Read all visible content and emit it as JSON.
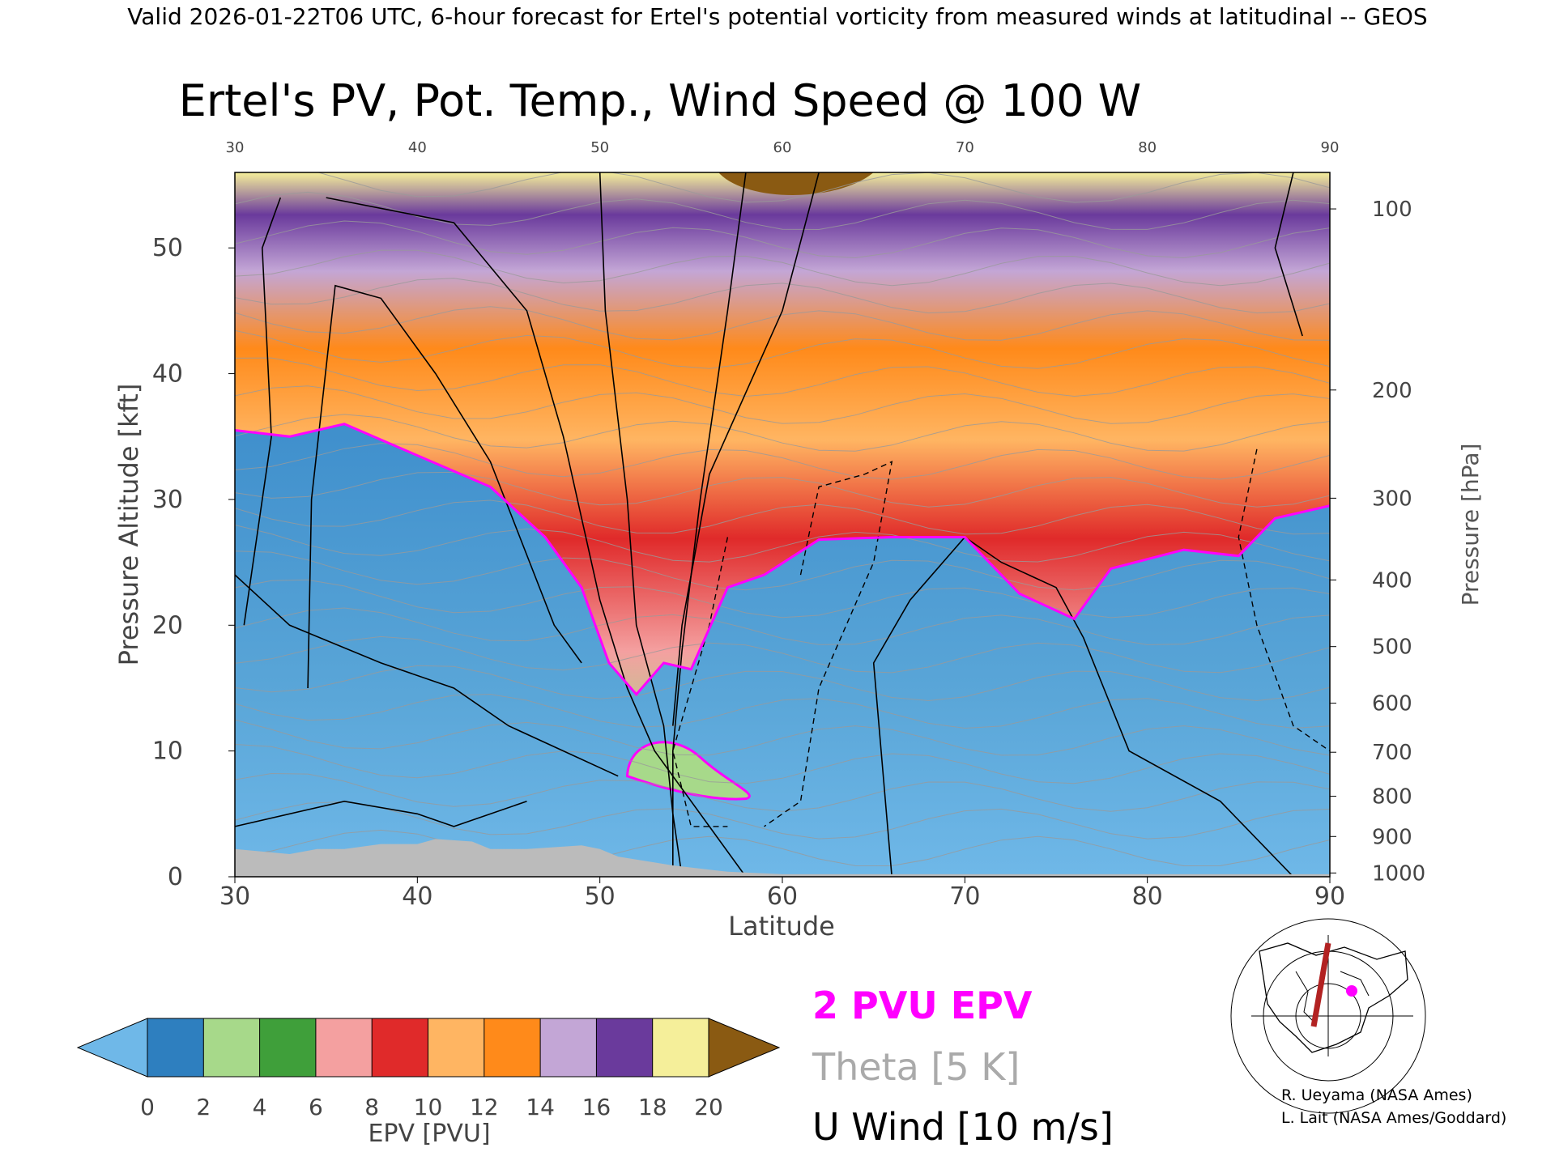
{
  "header": "Valid 2026-01-22T06 UTC, 6-hour forecast for Ertel's potential vorticity from measured winds at latitudinal -- GEOS",
  "chart_data": {
    "type": "heatmap",
    "title": "Ertel's PV, Pot. Temp., Wind Speed @ 100 W",
    "xlabel": "Latitude",
    "ylabel": "Pressure Altitude [kft]",
    "ylabel_right": "Pressure [hPa]",
    "xlim": [
      30,
      90
    ],
    "ylim": [
      0,
      56
    ],
    "x_ticks": [
      "30",
      "40",
      "50",
      "60",
      "70",
      "80",
      "90"
    ],
    "y_ticks": [
      "0",
      "10",
      "20",
      "30",
      "40",
      "50"
    ],
    "pressure_ticks": [
      {
        "label": "100",
        "kft": 53.1
      },
      {
        "label": "200",
        "kft": 38.7
      },
      {
        "label": "300",
        "kft": 30.1
      },
      {
        "label": "400",
        "kft": 23.6
      },
      {
        "label": "500",
        "kft": 18.3
      },
      {
        "label": "600",
        "kft": 13.8
      },
      {
        "label": "700",
        "kft": 9.9
      },
      {
        "label": "800",
        "kft": 6.4
      },
      {
        "label": "900",
        "kft": 3.2
      },
      {
        "label": "1000",
        "kft": 0.3
      }
    ],
    "tropopause_2pvu_kft": [
      {
        "lat": 30,
        "kft": 35.5
      },
      {
        "lat": 33,
        "kft": 35.0
      },
      {
        "lat": 36,
        "kft": 36.0
      },
      {
        "lat": 40,
        "kft": 33.5
      },
      {
        "lat": 44,
        "kft": 31.0
      },
      {
        "lat": 47,
        "kft": 27.0
      },
      {
        "lat": 49,
        "kft": 23.0
      },
      {
        "lat": 50.5,
        "kft": 17.0
      },
      {
        "lat": 52,
        "kft": 14.5
      },
      {
        "lat": 53.5,
        "kft": 17.0
      },
      {
        "lat": 55,
        "kft": 16.5
      },
      {
        "lat": 57,
        "kft": 23.0
      },
      {
        "lat": 59,
        "kft": 24.0
      },
      {
        "lat": 62,
        "kft": 26.8
      },
      {
        "lat": 66,
        "kft": 27.0
      },
      {
        "lat": 70,
        "kft": 27.0
      },
      {
        "lat": 73,
        "kft": 22.5
      },
      {
        "lat": 76,
        "kft": 20.5
      },
      {
        "lat": 78,
        "kft": 24.5
      },
      {
        "lat": 82,
        "kft": 26.0
      },
      {
        "lat": 85,
        "kft": 25.5
      },
      {
        "lat": 87,
        "kft": 28.5
      },
      {
        "lat": 90,
        "kft": 29.5
      }
    ],
    "colorbar": {
      "label": "EPV [PVU]",
      "ticks": [
        "0",
        "2",
        "4",
        "6",
        "8",
        "10",
        "12",
        "14",
        "16",
        "18",
        "20"
      ],
      "colors": [
        "#6fb8e8",
        "#2e7fbf",
        "#a7d98a",
        "#3f9f3a",
        "#f4a0a0",
        "#e02a2a",
        "#ffb562",
        "#ff8a1a",
        "#c3a6d6",
        "#6a3a9c",
        "#f5ef9a",
        "#8a5a12"
      ]
    },
    "legend": [
      {
        "label": "2 PVU EPV",
        "color": "#ff00ff"
      },
      {
        "label": "Theta [5 K]",
        "color": "#a9a9a9"
      },
      {
        "label": "U Wind [10 m/s]",
        "color": "#000000"
      }
    ]
  },
  "credits": [
    "R. Ueyama (NASA Ames)",
    "L. Lait (NASA Ames/Goddard)"
  ]
}
